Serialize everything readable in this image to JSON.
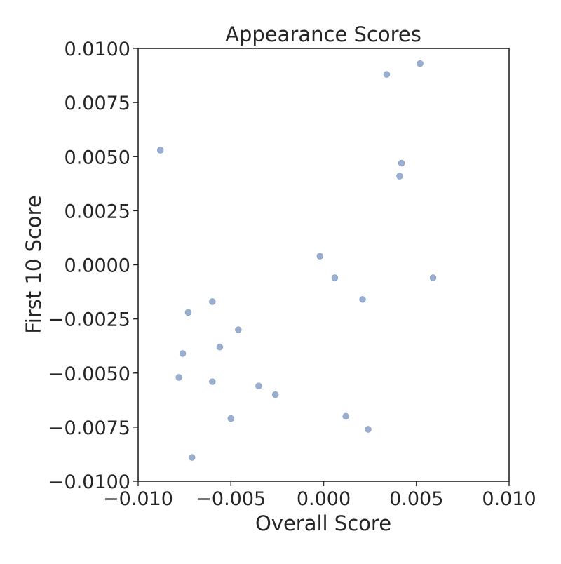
{
  "chart_data": {
    "type": "scatter",
    "title": "Appearance Scores",
    "xlabel": "Overall Score",
    "ylabel": "First 10 Score",
    "xlim": [
      -0.01,
      0.01
    ],
    "ylim": [
      -0.01,
      0.01
    ],
    "xticks": [
      -0.01,
      -0.005,
      0.0,
      0.005,
      0.01
    ],
    "xtick_labels": [
      "−0.010",
      "−0.005",
      "0.000",
      "0.005",
      "0.010"
    ],
    "yticks": [
      -0.01,
      -0.0075,
      -0.005,
      -0.0025,
      0.0,
      0.0025,
      0.005,
      0.0075,
      0.01
    ],
    "ytick_labels": [
      "−0.0100",
      "−0.0075",
      "−0.0050",
      "−0.0025",
      "0.0000",
      "0.0025",
      "0.0050",
      "0.0075",
      "0.0100"
    ],
    "grid": false,
    "point_color": "#9aafd0",
    "series": [
      {
        "points": [
          [
            0.0052,
            0.0093
          ],
          [
            0.0034,
            0.0088
          ],
          [
            -0.0088,
            0.0053
          ],
          [
            0.0042,
            0.0047
          ],
          [
            0.0041,
            0.0041
          ],
          [
            -0.0002,
            0.0004
          ],
          [
            0.0006,
            -0.0006
          ],
          [
            0.0059,
            -0.0006
          ],
          [
            0.0021,
            -0.0016
          ],
          [
            -0.006,
            -0.0017
          ],
          [
            -0.0073,
            -0.0022
          ],
          [
            -0.0046,
            -0.003
          ],
          [
            -0.0056,
            -0.0038
          ],
          [
            -0.0076,
            -0.0041
          ],
          [
            -0.0078,
            -0.0052
          ],
          [
            -0.006,
            -0.0054
          ],
          [
            -0.0035,
            -0.0056
          ],
          [
            -0.0026,
            -0.006
          ],
          [
            0.0012,
            -0.007
          ],
          [
            -0.005,
            -0.0071
          ],
          [
            0.0024,
            -0.0076
          ],
          [
            -0.0071,
            -0.0089
          ]
        ]
      }
    ]
  }
}
